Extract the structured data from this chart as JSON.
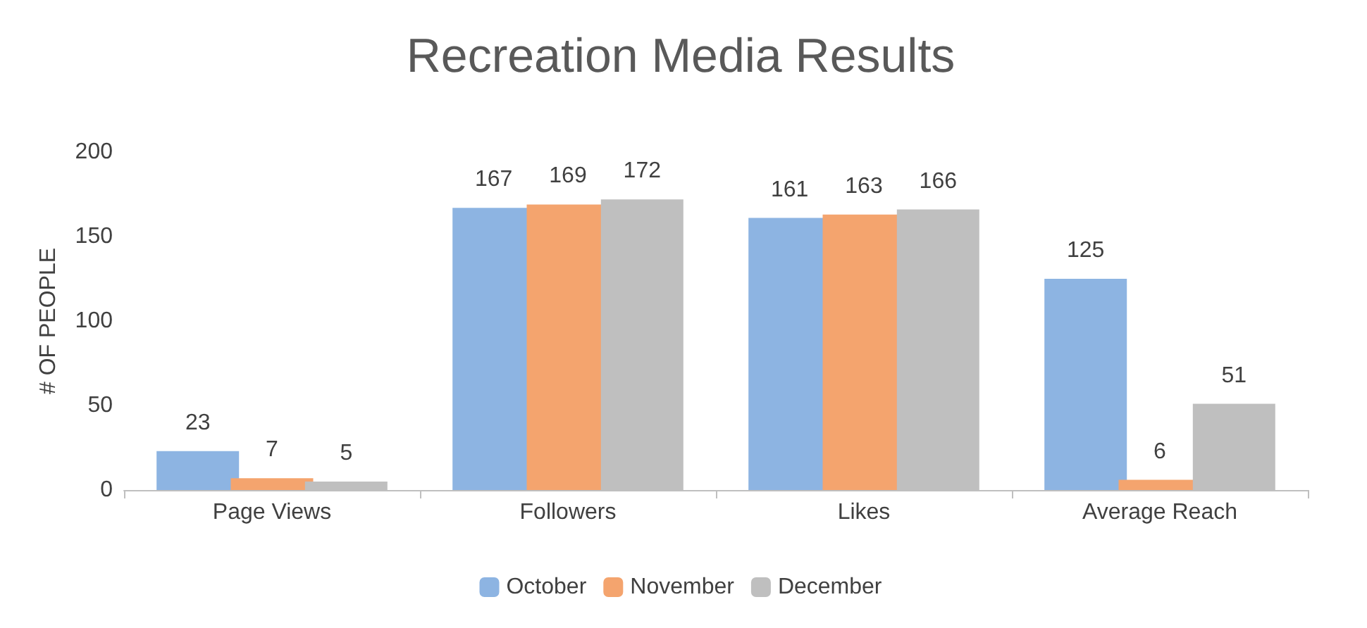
{
  "chart_data": {
    "type": "bar",
    "title": "Recreation Media Results",
    "ylabel": "# OF PEOPLE",
    "categories": [
      "Page Views",
      "Followers",
      "Likes",
      "Average Reach"
    ],
    "series": [
      {
        "name": "October",
        "color": "#8db4e2",
        "values": [
          23,
          167,
          161,
          125
        ]
      },
      {
        "name": "November",
        "color": "#f4a46e",
        "values": [
          7,
          169,
          163,
          6
        ]
      },
      {
        "name": "December",
        "color": "#bfbfbf",
        "values": [
          5,
          172,
          166,
          51
        ]
      }
    ],
    "ylim": [
      0,
      200
    ],
    "yticks": [
      0,
      50,
      100,
      150,
      200
    ],
    "grid": false,
    "legend": "bottom",
    "data_labels": true
  }
}
